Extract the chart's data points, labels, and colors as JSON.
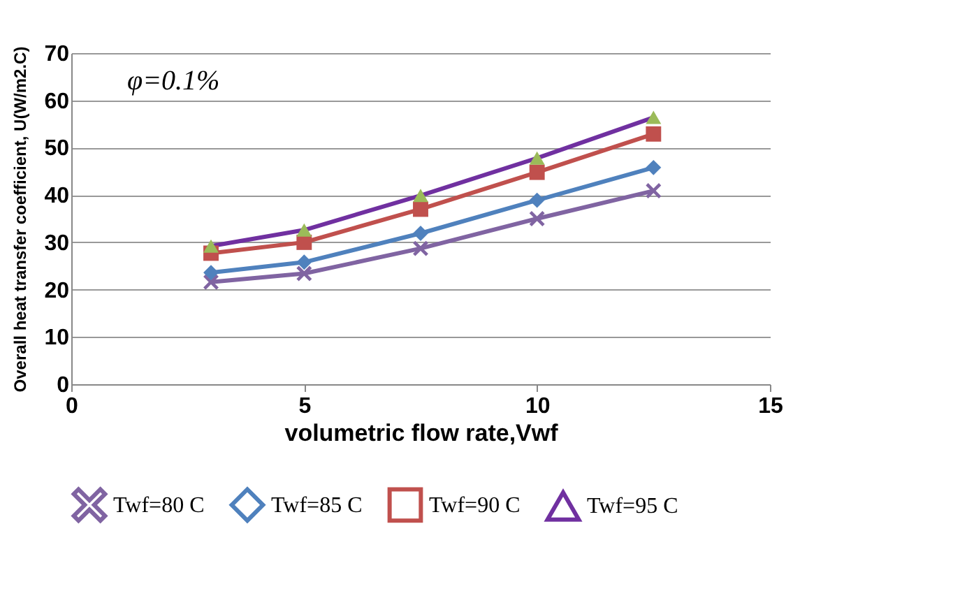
{
  "chart_data": {
    "type": "line",
    "xlabel": "volumetric flow rate,Vwf",
    "ylabel": "Overall heat transfer coefficient, U(W/m2.C)",
    "annotations": [
      "φ=0.1%"
    ],
    "x": [
      3,
      5,
      7.5,
      10,
      12.5
    ],
    "series": [
      {
        "name": "Twf=80 C",
        "color": "#8064a2",
        "marker": "cross",
        "values": [
          21.6,
          23.4,
          28.7,
          35,
          40.9
        ]
      },
      {
        "name": "Twf=85 C",
        "color": "#4f81bd",
        "marker": "diamond",
        "values": [
          23.6,
          25.8,
          31.9,
          38.9,
          45.8
        ]
      },
      {
        "name": "Twf=90 C",
        "color": "#c0504d",
        "marker": "square",
        "values": [
          27.7,
          30,
          37,
          44.8,
          52.9
        ]
      },
      {
        "name": "Twf=95 C",
        "color": "#7030a0",
        "marker": "triangle",
        "colors": [
          "#9bbb59",
          "#9bbb59",
          "#9bbb59",
          "#9bbb59",
          "#9bbb59"
        ],
        "values": [
          29.2,
          32.6,
          39.9,
          47.8,
          56.4
        ]
      }
    ],
    "xlim": [
      0,
      15
    ],
    "xticks": [
      0,
      5,
      10,
      15
    ],
    "ylim": [
      0,
      70
    ],
    "yticks": [
      0,
      10,
      20,
      30,
      40,
      50,
      60,
      70
    ],
    "grid": "y",
    "legend": "bottom"
  }
}
